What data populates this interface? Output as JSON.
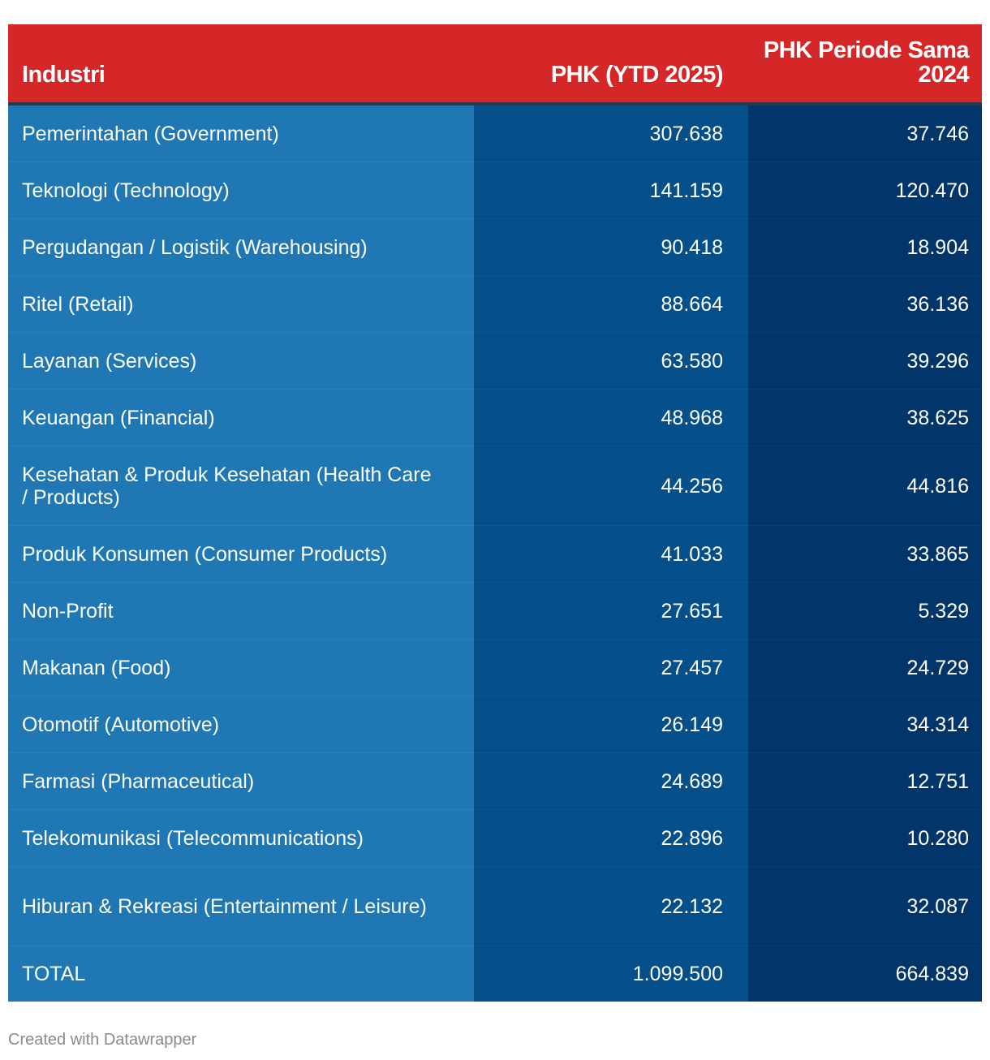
{
  "chart_data": {
    "type": "table",
    "columns": [
      "Industri",
      "PHK (YTD 2025)",
      "PHK Periode Sama 2024"
    ],
    "rows": [
      {
        "industri": "Pemerintahan (Government)",
        "ytd2025": "307.638",
        "sama2024": "37.746"
      },
      {
        "industri": "Teknologi (Technology)",
        "ytd2025": "141.159",
        "sama2024": "120.470"
      },
      {
        "industri": "Pergudangan / Logistik (Warehousing)",
        "ytd2025": "90.418",
        "sama2024": "18.904"
      },
      {
        "industri": "Ritel (Retail)",
        "ytd2025": "88.664",
        "sama2024": "36.136"
      },
      {
        "industri": "Layanan (Services)",
        "ytd2025": "63.580",
        "sama2024": "39.296"
      },
      {
        "industri": "Keuangan (Financial)",
        "ytd2025": "48.968",
        "sama2024": "38.625"
      },
      {
        "industri": "Kesehatan & Produk Kesehatan (Health Care / Products)",
        "ytd2025": "44.256",
        "sama2024": "44.816"
      },
      {
        "industri": "Produk Konsumen (Consumer Products)",
        "ytd2025": "41.033",
        "sama2024": "33.865"
      },
      {
        "industri": "Non-Profit",
        "ytd2025": "27.651",
        "sama2024": "5.329"
      },
      {
        "industri": "Makanan (Food)",
        "ytd2025": "27.457",
        "sama2024": "24.729"
      },
      {
        "industri": "Otomotif (Automotive)",
        "ytd2025": "26.149",
        "sama2024": "34.314"
      },
      {
        "industri": "Farmasi (Pharmaceutical)",
        "ytd2025": "24.689",
        "sama2024": "12.751"
      },
      {
        "industri": "Telekomunikasi (Telecommunications)",
        "ytd2025": "22.896",
        "sama2024": "10.280"
      },
      {
        "industri": "Hiburan & Rekreasi (Entertainment / Leisure)",
        "ytd2025": "22.132",
        "sama2024": "32.087"
      },
      {
        "industri": "TOTAL",
        "ytd2025": "1.099.500",
        "sama2024": "664.839"
      }
    ],
    "colors": {
      "header": "#d62728",
      "col1": "#1f77b4",
      "col2": "#054f8a",
      "col3": "#02356a"
    }
  },
  "footer": {
    "credit": "Created with Datawrapper"
  }
}
